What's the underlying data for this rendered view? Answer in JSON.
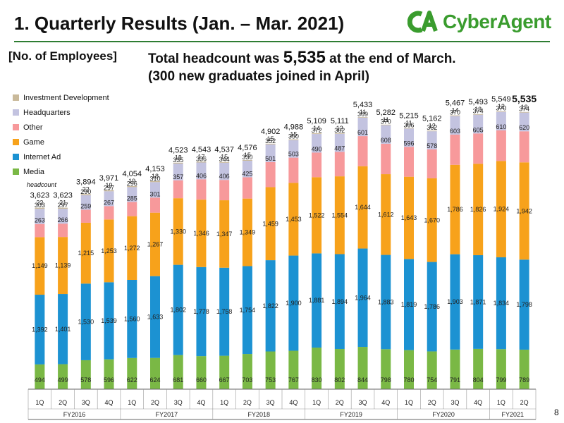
{
  "header": {
    "title": "1.  Quarterly Results (Jan. – Mar. 2021)",
    "logo_text": "CyberAgent"
  },
  "subtag": "[No. of Employees]",
  "headline": {
    "line1_prefix": "Total headcount was ",
    "line1_number": "5,535",
    "line1_suffix": " at the end of March.",
    "line2": "(300 new graduates joined in April)"
  },
  "legend": {
    "items": [
      {
        "label": "Investment Development",
        "color": "#c9b99a"
      },
      {
        "label": "Headquarters",
        "color": "#c3c3e0"
      },
      {
        "label": "Other",
        "color": "#f7999b"
      },
      {
        "label": "Game",
        "color": "#f7a21b"
      },
      {
        "label": "Internet Ad",
        "color": "#1c92d2"
      },
      {
        "label": "Media",
        "color": "#7ab845"
      }
    ]
  },
  "unit_label": "headcount",
  "page_number": "8",
  "chart_data": {
    "type": "bar",
    "stacked": true,
    "quarters": [
      "1Q",
      "2Q",
      "3Q",
      "4Q",
      "1Q",
      "2Q",
      "3Q",
      "4Q",
      "1Q",
      "2Q",
      "3Q",
      "4Q",
      "1Q",
      "2Q",
      "3Q",
      "4Q",
      "1Q",
      "2Q",
      "3Q",
      "4Q",
      "1Q",
      "2Q"
    ],
    "fiscal_years": [
      {
        "label": "FY2016",
        "span": 4
      },
      {
        "label": "FY2017",
        "span": 4
      },
      {
        "label": "FY2018",
        "span": 4
      },
      {
        "label": "FY2019",
        "span": 4
      },
      {
        "label": "FY2020",
        "span": 4
      },
      {
        "label": "FY2021",
        "span": 2
      }
    ],
    "totals": [
      "3,623",
      "3,623",
      "3,894",
      "3,971",
      "4,054",
      "4,153",
      "4,523",
      "4,543",
      "4,537",
      "4,576",
      "4,902",
      "4,988",
      "5,109",
      "5,111",
      "5,433",
      "5,282",
      "5,215",
      "5,162",
      "5,467",
      "5,493",
      "5,549",
      "5,535"
    ],
    "series": [
      {
        "name": "Media",
        "color": "#7ab845",
        "values": [
          494,
          499,
          578,
          596,
          622,
          624,
          681,
          660,
          667,
          703,
          753,
          767,
          830,
          802,
          844,
          798,
          780,
          754,
          791,
          804,
          799,
          789
        ]
      },
      {
        "name": "Internet Ad",
        "color": "#1c92d2",
        "values": [
          1392,
          1401,
          1530,
          1539,
          1560,
          1633,
          1802,
          1778,
          1758,
          1754,
          1822,
          1900,
          1881,
          1894,
          1964,
          1883,
          1819,
          1786,
          1903,
          1871,
          1834,
          1798
        ]
      },
      {
        "name": "Game",
        "color": "#f7a21b",
        "values": [
          1149,
          1139,
          1215,
          1253,
          1272,
          1267,
          1330,
          1346,
          1347,
          1349,
          1459,
          1453,
          1522,
          1554,
          1644,
          1612,
          1643,
          1670,
          1786,
          1826,
          1924,
          1942
        ]
      },
      {
        "name": "Other",
        "color": "#f7999b",
        "values": [
          263,
          266,
          259,
          267,
          285,
          301,
          357,
          406,
          406,
          425,
          501,
          503,
          490,
          487,
          601,
          608,
          596,
          578,
          603,
          605,
          610,
          620
        ]
      },
      {
        "name": "Headquarters",
        "color": "#c3c3e0",
        "values": [
          303,
          297,
          290,
          297,
          296,
          310,
          335,
          336,
          344,
          330,
          352,
          350,
          372,
          362,
          369,
          370,
          366,
          362,
          370,
          374,
          370,
          374
        ]
      },
      {
        "name": "Investment Development",
        "color": "#c9b99a",
        "values": [
          22,
          21,
          22,
          19,
          19,
          18,
          18,
          17,
          15,
          15,
          15,
          15,
          14,
          12,
          11,
          11,
          11,
          12,
          14,
          13,
          12,
          12
        ]
      }
    ],
    "ylim": [
      0,
      5800
    ]
  }
}
